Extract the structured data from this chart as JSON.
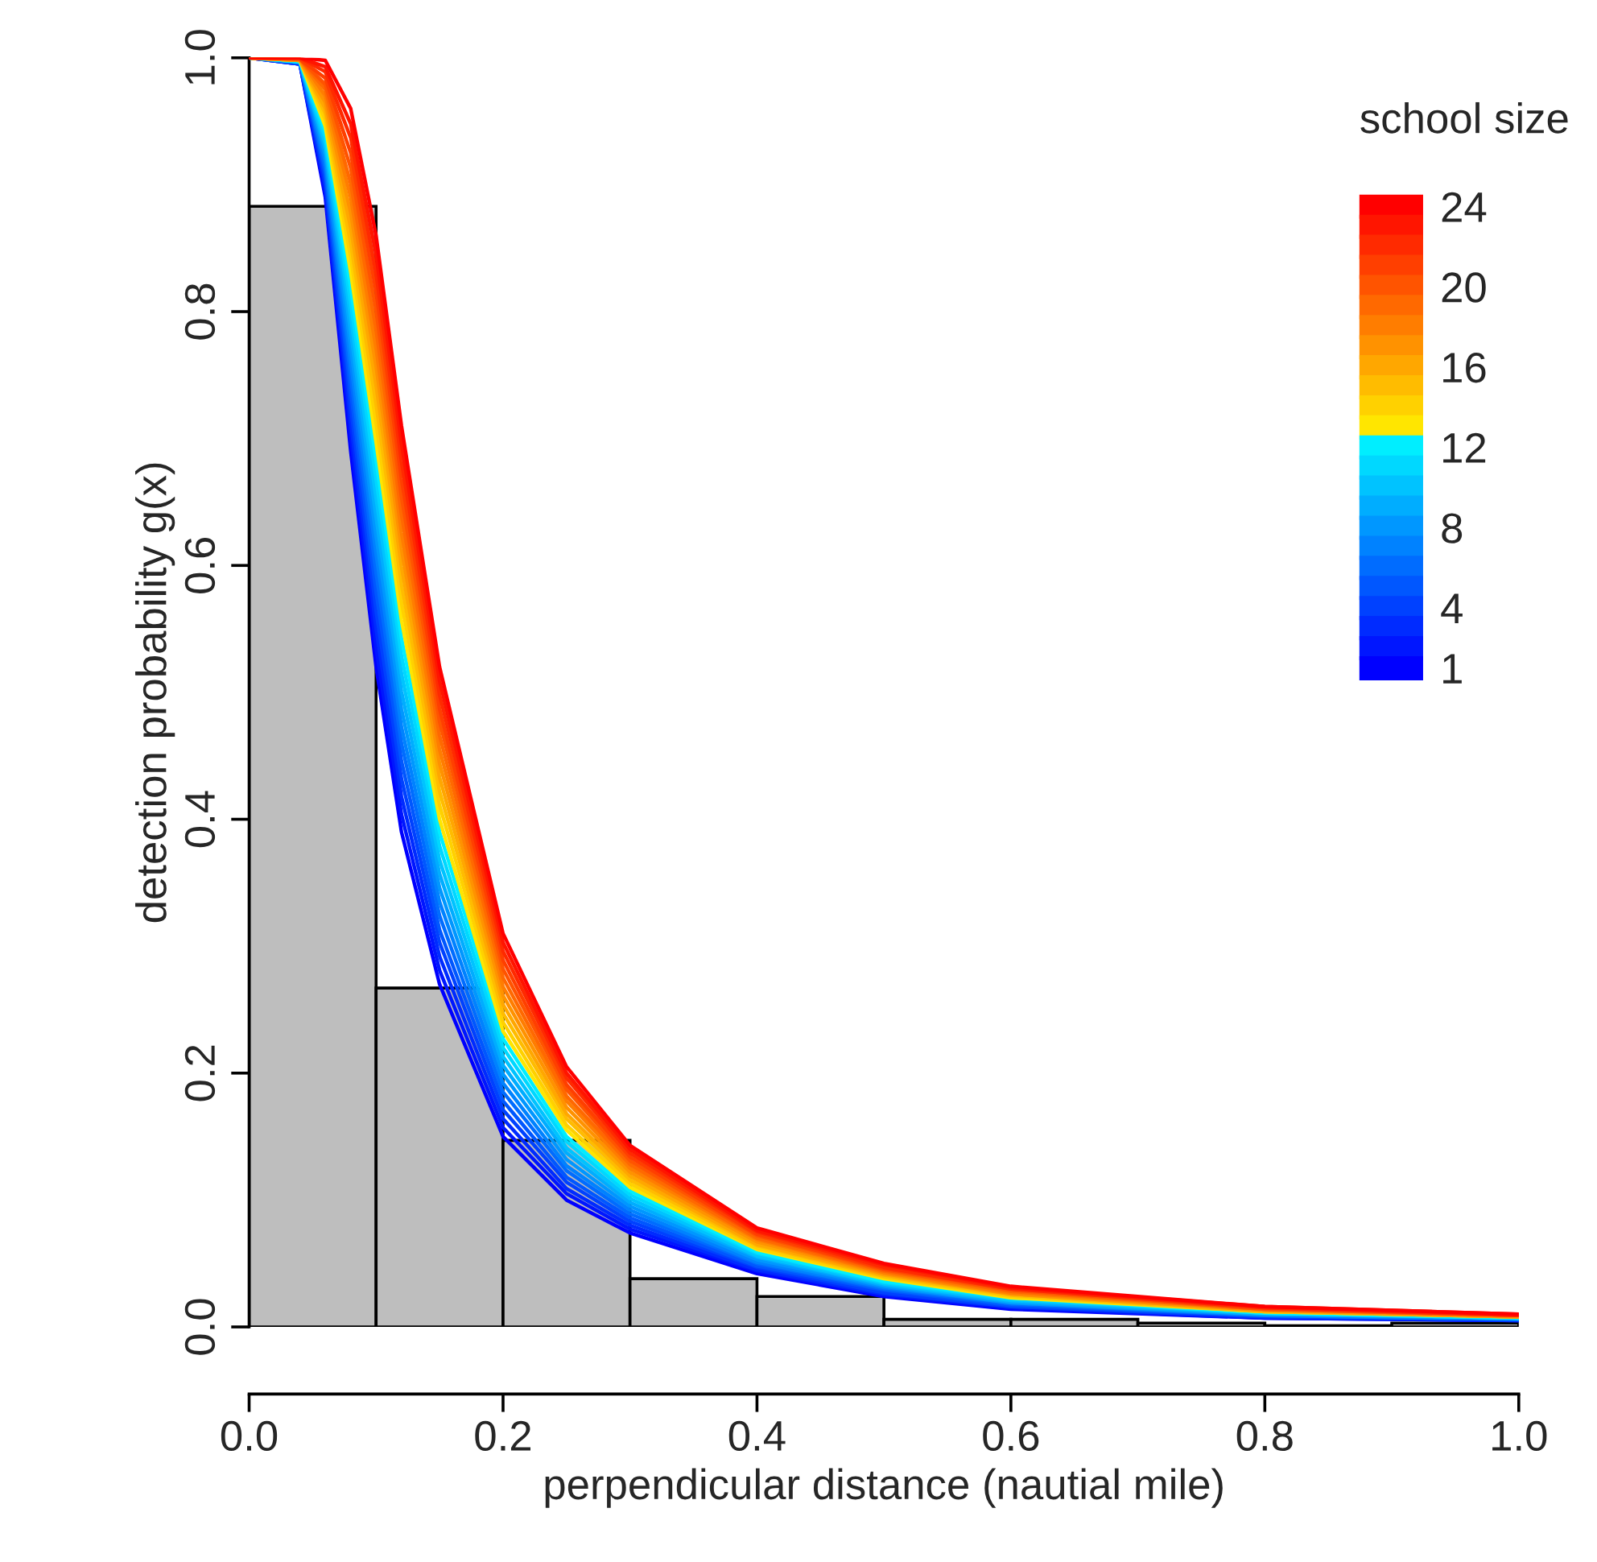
{
  "chart_data": {
    "type": "histogram",
    "xlabel": "perpendicular distance (nautial mile)",
    "ylabel": "detection probability g(x)",
    "legend_title": "school size",
    "legend": "top right",
    "bins": [
      0,
      0.1,
      0.2,
      0.3,
      0.4,
      0.5,
      0.6,
      0.7,
      0.8,
      0.9,
      1.0
    ],
    "values": [
      0.883,
      0.267,
      0.147,
      0.038,
      0.024,
      0.006,
      0.006,
      0.003,
      0.001,
      0.003
    ],
    "color": "#bebebe",
    "xlim": [
      0,
      1
    ],
    "ylim": [
      0,
      1
    ],
    "xticks": [
      {
        "value": 0,
        "label": "0.0"
      },
      0.2,
      0.4,
      0.6,
      0.8,
      {
        "value": 1,
        "label": "1.0"
      }
    ],
    "yticks": [
      {
        "value": 0,
        "label": "0.0"
      },
      0.2,
      0.4,
      0.6,
      0.8,
      {
        "value": 1,
        "label": "1.0"
      }
    ],
    "series": [
      {
        "type": "line",
        "name": "1",
        "color": "#0000ff",
        "x": [
          0,
          0.04,
          0.06,
          0.08,
          0.1,
          0.12,
          0.15,
          0.2,
          0.25,
          0.3,
          0.4,
          0.5,
          0.6,
          0.8,
          1.0
        ],
        "values": [
          1,
          0.995,
          0.89,
          0.69,
          0.52,
          0.39,
          0.27,
          0.15,
          0.1,
          0.074,
          0.042,
          0.024,
          0.014,
          0.007,
          0.005
        ]
      },
      {
        "type": "line",
        "color": "#0016ff",
        "x": [
          0,
          0.04,
          0.06,
          0.08,
          0.1,
          0.12,
          0.15,
          0.2,
          0.25,
          0.3,
          0.4,
          0.5,
          0.6,
          0.8,
          1.0
        ],
        "values": [
          1,
          0.995,
          0.895,
          0.702,
          0.535,
          0.404,
          0.281,
          0.157,
          0.105,
          0.077,
          0.044,
          0.025,
          0.015,
          0.007,
          0.005
        ]
      },
      {
        "type": "line",
        "color": "#002bff",
        "x": [
          0,
          0.04,
          0.06,
          0.08,
          0.1,
          0.12,
          0.15,
          0.2,
          0.25,
          0.3,
          0.4,
          0.5,
          0.6,
          0.8,
          1.0
        ],
        "values": [
          1,
          0.995,
          0.899,
          0.713,
          0.55,
          0.418,
          0.292,
          0.164,
          0.109,
          0.08,
          0.045,
          0.026,
          0.016,
          0.008,
          0.005
        ]
      },
      {
        "type": "line",
        "name": "4",
        "color": "#0041ff",
        "x": [
          0,
          0.04,
          0.06,
          0.08,
          0.1,
          0.12,
          0.15,
          0.2,
          0.25,
          0.3,
          0.4,
          0.5,
          0.6,
          0.8,
          1.0
        ],
        "values": [
          1,
          0.996,
          0.904,
          0.725,
          0.564,
          0.432,
          0.303,
          0.171,
          0.114,
          0.083,
          0.047,
          0.027,
          0.016,
          0.008,
          0.006
        ]
      },
      {
        "type": "line",
        "color": "#0057ff",
        "x": [
          0,
          0.04,
          0.06,
          0.08,
          0.1,
          0.12,
          0.15,
          0.2,
          0.25,
          0.3,
          0.4,
          0.5,
          0.6,
          0.8,
          1.0
        ],
        "values": [
          1,
          0.996,
          0.909,
          0.737,
          0.579,
          0.446,
          0.313,
          0.178,
          0.118,
          0.086,
          0.048,
          0.029,
          0.017,
          0.009,
          0.006
        ]
      },
      {
        "type": "line",
        "color": "#006cff",
        "x": [
          0,
          0.04,
          0.06,
          0.08,
          0.1,
          0.12,
          0.15,
          0.2,
          0.25,
          0.3,
          0.4,
          0.5,
          0.6,
          0.8,
          1.0
        ],
        "values": [
          1,
          0.996,
          0.913,
          0.749,
          0.594,
          0.46,
          0.324,
          0.185,
          0.123,
          0.089,
          0.05,
          0.03,
          0.018,
          0.009,
          0.006
        ]
      },
      {
        "type": "line",
        "color": "#0082ff",
        "x": [
          0,
          0.04,
          0.06,
          0.08,
          0.1,
          0.12,
          0.15,
          0.2,
          0.25,
          0.3,
          0.4,
          0.5,
          0.6,
          0.8,
          1.0
        ],
        "values": [
          1,
          0.996,
          0.918,
          0.76,
          0.609,
          0.473,
          0.335,
          0.192,
          0.127,
          0.092,
          0.051,
          0.031,
          0.019,
          0.009,
          0.006
        ]
      },
      {
        "type": "line",
        "name": "8",
        "color": "#0097ff",
        "x": [
          0,
          0.04,
          0.06,
          0.08,
          0.1,
          0.12,
          0.15,
          0.2,
          0.25,
          0.3,
          0.4,
          0.5,
          0.6,
          0.8,
          1.0
        ],
        "values": [
          1,
          0.997,
          0.923,
          0.772,
          0.623,
          0.487,
          0.346,
          0.199,
          0.132,
          0.095,
          0.053,
          0.032,
          0.019,
          0.01,
          0.007
        ]
      },
      {
        "type": "line",
        "color": "#00adff",
        "x": [
          0,
          0.04,
          0.06,
          0.08,
          0.1,
          0.12,
          0.15,
          0.2,
          0.25,
          0.3,
          0.4,
          0.5,
          0.6,
          0.8,
          1.0
        ],
        "values": [
          1,
          0.997,
          0.928,
          0.784,
          0.638,
          0.501,
          0.357,
          0.206,
          0.137,
          0.098,
          0.055,
          0.033,
          0.02,
          0.01,
          0.007
        ]
      },
      {
        "type": "line",
        "color": "#00c3ff",
        "x": [
          0,
          0.04,
          0.06,
          0.08,
          0.1,
          0.12,
          0.15,
          0.2,
          0.25,
          0.3,
          0.4,
          0.5,
          0.6,
          0.8,
          1.0
        ],
        "values": [
          1,
          0.997,
          0.932,
          0.796,
          0.653,
          0.515,
          0.368,
          0.213,
          0.141,
          0.101,
          0.056,
          0.034,
          0.021,
          0.011,
          0.007
        ]
      },
      {
        "type": "line",
        "color": "#00d8ff",
        "x": [
          0,
          0.04,
          0.06,
          0.08,
          0.1,
          0.12,
          0.15,
          0.2,
          0.25,
          0.3,
          0.4,
          0.5,
          0.6,
          0.8,
          1.0
        ],
        "values": [
          1,
          0.997,
          0.937,
          0.807,
          0.668,
          0.529,
          0.379,
          0.22,
          0.146,
          0.104,
          0.058,
          0.035,
          0.022,
          0.011,
          0.007
        ]
      },
      {
        "type": "line",
        "name": "12",
        "color": "#00eeff",
        "x": [
          0,
          0.04,
          0.06,
          0.08,
          0.1,
          0.12,
          0.15,
          0.2,
          0.25,
          0.3,
          0.4,
          0.5,
          0.6,
          0.8,
          1.0
        ],
        "values": [
          1,
          0.997,
          0.942,
          0.819,
          0.683,
          0.543,
          0.39,
          0.227,
          0.15,
          0.107,
          0.059,
          0.036,
          0.023,
          0.011,
          0.007
        ]
      },
      {
        "type": "line",
        "color": "#ffe600",
        "x": [
          0,
          0.04,
          0.06,
          0.08,
          0.1,
          0.12,
          0.15,
          0.2,
          0.25,
          0.3,
          0.4,
          0.5,
          0.6,
          0.8,
          1.0
        ],
        "values": [
          1,
          0.998,
          0.946,
          0.831,
          0.697,
          0.557,
          0.4,
          0.233,
          0.155,
          0.11,
          0.061,
          0.038,
          0.023,
          0.012,
          0.008
        ]
      },
      {
        "type": "line",
        "color": "#ffd100",
        "x": [
          0,
          0.04,
          0.06,
          0.08,
          0.1,
          0.12,
          0.15,
          0.2,
          0.25,
          0.3,
          0.4,
          0.5,
          0.6,
          0.8,
          1.0
        ],
        "values": [
          1,
          0.998,
          0.951,
          0.843,
          0.712,
          0.571,
          0.411,
          0.24,
          0.159,
          0.113,
          0.062,
          0.039,
          0.024,
          0.012,
          0.008
        ]
      },
      {
        "type": "line",
        "color": "#ffbc00",
        "x": [
          0,
          0.04,
          0.06,
          0.08,
          0.1,
          0.12,
          0.15,
          0.2,
          0.25,
          0.3,
          0.4,
          0.5,
          0.6,
          0.8,
          1.0
        ],
        "values": [
          1,
          0.998,
          0.956,
          0.854,
          0.727,
          0.585,
          0.422,
          0.247,
          0.164,
          0.116,
          0.064,
          0.04,
          0.025,
          0.012,
          0.008
        ]
      },
      {
        "type": "line",
        "name": "16",
        "color": "#ffa700",
        "x": [
          0,
          0.04,
          0.06,
          0.08,
          0.1,
          0.12,
          0.15,
          0.2,
          0.25,
          0.3,
          0.4,
          0.5,
          0.6,
          0.8,
          1.0
        ],
        "values": [
          1,
          0.998,
          0.96,
          0.866,
          0.742,
          0.599,
          0.433,
          0.254,
          0.168,
          0.119,
          0.065,
          0.041,
          0.026,
          0.013,
          0.008
        ]
      },
      {
        "type": "line",
        "color": "#ff9200",
        "x": [
          0,
          0.04,
          0.06,
          0.08,
          0.1,
          0.12,
          0.15,
          0.2,
          0.25,
          0.3,
          0.4,
          0.5,
          0.6,
          0.8,
          1.0
        ],
        "values": [
          1,
          0.998,
          0.965,
          0.878,
          0.757,
          0.613,
          0.444,
          0.261,
          0.173,
          0.122,
          0.067,
          0.042,
          0.026,
          0.013,
          0.008
        ]
      },
      {
        "type": "line",
        "color": "#ff7d00",
        "x": [
          0,
          0.04,
          0.06,
          0.08,
          0.1,
          0.12,
          0.15,
          0.2,
          0.25,
          0.3,
          0.4,
          0.5,
          0.6,
          0.8,
          1.0
        ],
        "values": [
          1,
          0.999,
          0.97,
          0.89,
          0.771,
          0.626,
          0.455,
          0.268,
          0.178,
          0.125,
          0.069,
          0.043,
          0.027,
          0.014,
          0.009
        ]
      },
      {
        "type": "line",
        "color": "#ff6900",
        "x": [
          0,
          0.04,
          0.06,
          0.08,
          0.1,
          0.12,
          0.15,
          0.2,
          0.25,
          0.3,
          0.4,
          0.5,
          0.6,
          0.8,
          1.0
        ],
        "values": [
          1,
          0.999,
          0.975,
          0.901,
          0.786,
          0.64,
          0.466,
          0.275,
          0.182,
          0.128,
          0.07,
          0.044,
          0.028,
          0.014,
          0.009
        ]
      },
      {
        "type": "line",
        "name": "20",
        "color": "#ff5400",
        "x": [
          0,
          0.04,
          0.06,
          0.08,
          0.1,
          0.12,
          0.15,
          0.2,
          0.25,
          0.3,
          0.4,
          0.5,
          0.6,
          0.8,
          1.0
        ],
        "values": [
          1,
          0.999,
          0.979,
          0.913,
          0.801,
          0.654,
          0.477,
          0.282,
          0.187,
          0.131,
          0.072,
          0.045,
          0.029,
          0.014,
          0.009
        ]
      },
      {
        "type": "line",
        "color": "#ff3f00",
        "x": [
          0,
          0.04,
          0.06,
          0.08,
          0.1,
          0.12,
          0.15,
          0.2,
          0.25,
          0.3,
          0.4,
          0.5,
          0.6,
          0.8,
          1.0
        ],
        "values": [
          1,
          0.999,
          0.984,
          0.925,
          0.816,
          0.668,
          0.487,
          0.289,
          0.191,
          0.134,
          0.073,
          0.046,
          0.03,
          0.015,
          0.009
        ]
      },
      {
        "type": "line",
        "color": "#ff2a00",
        "x": [
          0,
          0.04,
          0.06,
          0.08,
          0.1,
          0.12,
          0.15,
          0.2,
          0.25,
          0.3,
          0.4,
          0.5,
          0.6,
          0.8,
          1.0
        ],
        "values": [
          1,
          1.0,
          0.989,
          0.937,
          0.83,
          0.682,
          0.498,
          0.296,
          0.196,
          0.137,
          0.075,
          0.047,
          0.03,
          0.015,
          0.009
        ]
      },
      {
        "type": "line",
        "color": "#ff1500",
        "x": [
          0,
          0.04,
          0.06,
          0.08,
          0.1,
          0.12,
          0.15,
          0.2,
          0.25,
          0.3,
          0.4,
          0.5,
          0.6,
          0.8,
          1.0
        ],
        "values": [
          1,
          1.0,
          0.993,
          0.948,
          0.845,
          0.696,
          0.509,
          0.303,
          0.2,
          0.14,
          0.076,
          0.049,
          0.031,
          0.016,
          0.01
        ]
      },
      {
        "type": "line",
        "name": "24",
        "color": "#ff0000",
        "x": [
          0,
          0.04,
          0.06,
          0.08,
          0.1,
          0.12,
          0.15,
          0.2,
          0.25,
          0.3,
          0.4,
          0.5,
          0.6,
          0.8,
          1.0
        ],
        "values": [
          1,
          1.0,
          0.998,
          0.96,
          0.86,
          0.71,
          0.52,
          0.31,
          0.205,
          0.143,
          0.078,
          0.05,
          0.032,
          0.016,
          0.01
        ]
      }
    ]
  }
}
